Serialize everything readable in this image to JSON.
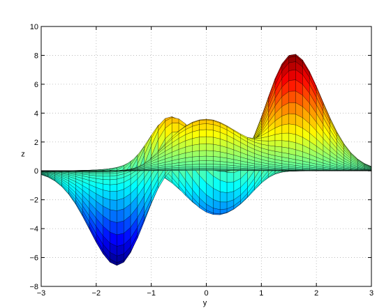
{
  "chart_data": {
    "type": "surface",
    "view": "side projection onto the y-z plane (x axis pointing toward viewer)",
    "function": "peaks(x, y)",
    "title": "",
    "xlabel": "y",
    "ylabel": "z",
    "xlim": [
      -3,
      3
    ],
    "ylim": [
      -8,
      10
    ],
    "xticks": [
      "-3",
      "-2",
      "-1",
      "0",
      "1",
      "2",
      "3"
    ],
    "yticks": [
      "-8",
      "-6",
      "-4",
      "-2",
      "0",
      "2",
      "4",
      "6",
      "8",
      "10"
    ],
    "grid": true,
    "grid_style": "dotted",
    "colormap": "jet",
    "mesh_edges": "black",
    "key_features": [
      {
        "label": "global max",
        "y": 1.6,
        "z": 8.1
      },
      {
        "label": "local max",
        "y": -0.6,
        "z": 3.6
      },
      {
        "label": "local max",
        "y": 0.0,
        "z": 3.5
      },
      {
        "label": "global min",
        "y": -1.6,
        "z": -6.5
      },
      {
        "label": "local min",
        "y": 0.2,
        "z": -3.0
      }
    ],
    "colors": {
      "grid": "#b0b0b0",
      "axes": "#000000",
      "mesh": "#000000"
    }
  }
}
